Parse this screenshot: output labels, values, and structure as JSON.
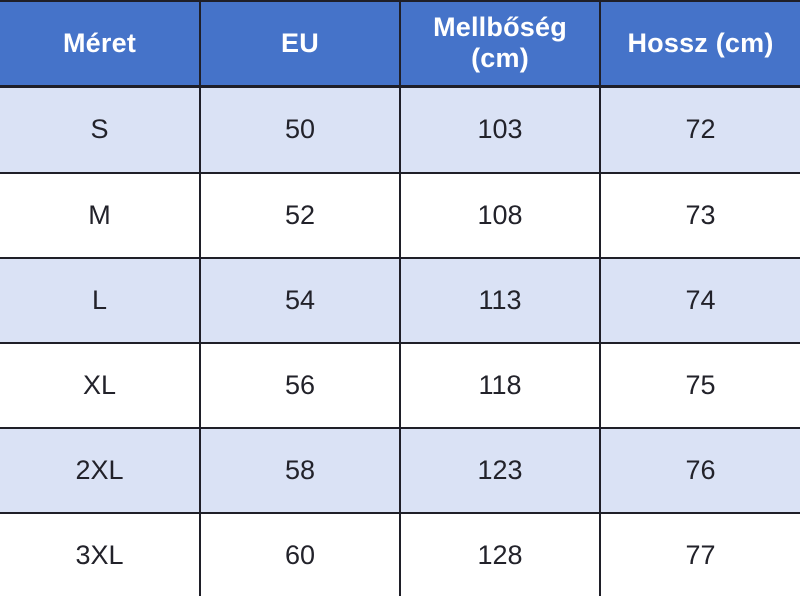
{
  "chart_data": {
    "type": "table",
    "title": "",
    "columns": [
      "Méret",
      "EU",
      "Mellbőség (cm)",
      "Hossz (cm)"
    ],
    "rows": [
      [
        "S",
        "50",
        "103",
        "72"
      ],
      [
        "M",
        "52",
        "108",
        "73"
      ],
      [
        "L",
        "54",
        "113",
        "74"
      ],
      [
        "XL",
        "56",
        "118",
        "75"
      ],
      [
        "2XL",
        "58",
        "123",
        "76"
      ],
      [
        "3XL",
        "60",
        "128",
        "77"
      ]
    ],
    "layout": {
      "header_row": true,
      "alternating_rows": "odd rows shaded light blue starting with first data row",
      "grid": true
    }
  },
  "colors": {
    "header_bg": "#4573C9",
    "header_text": "#FFFFFF",
    "row_shaded_bg": "#DAE2F5",
    "row_plain_bg": "#FFFFFF",
    "cell_text": "#22222A",
    "border": "#1F1F28"
  }
}
